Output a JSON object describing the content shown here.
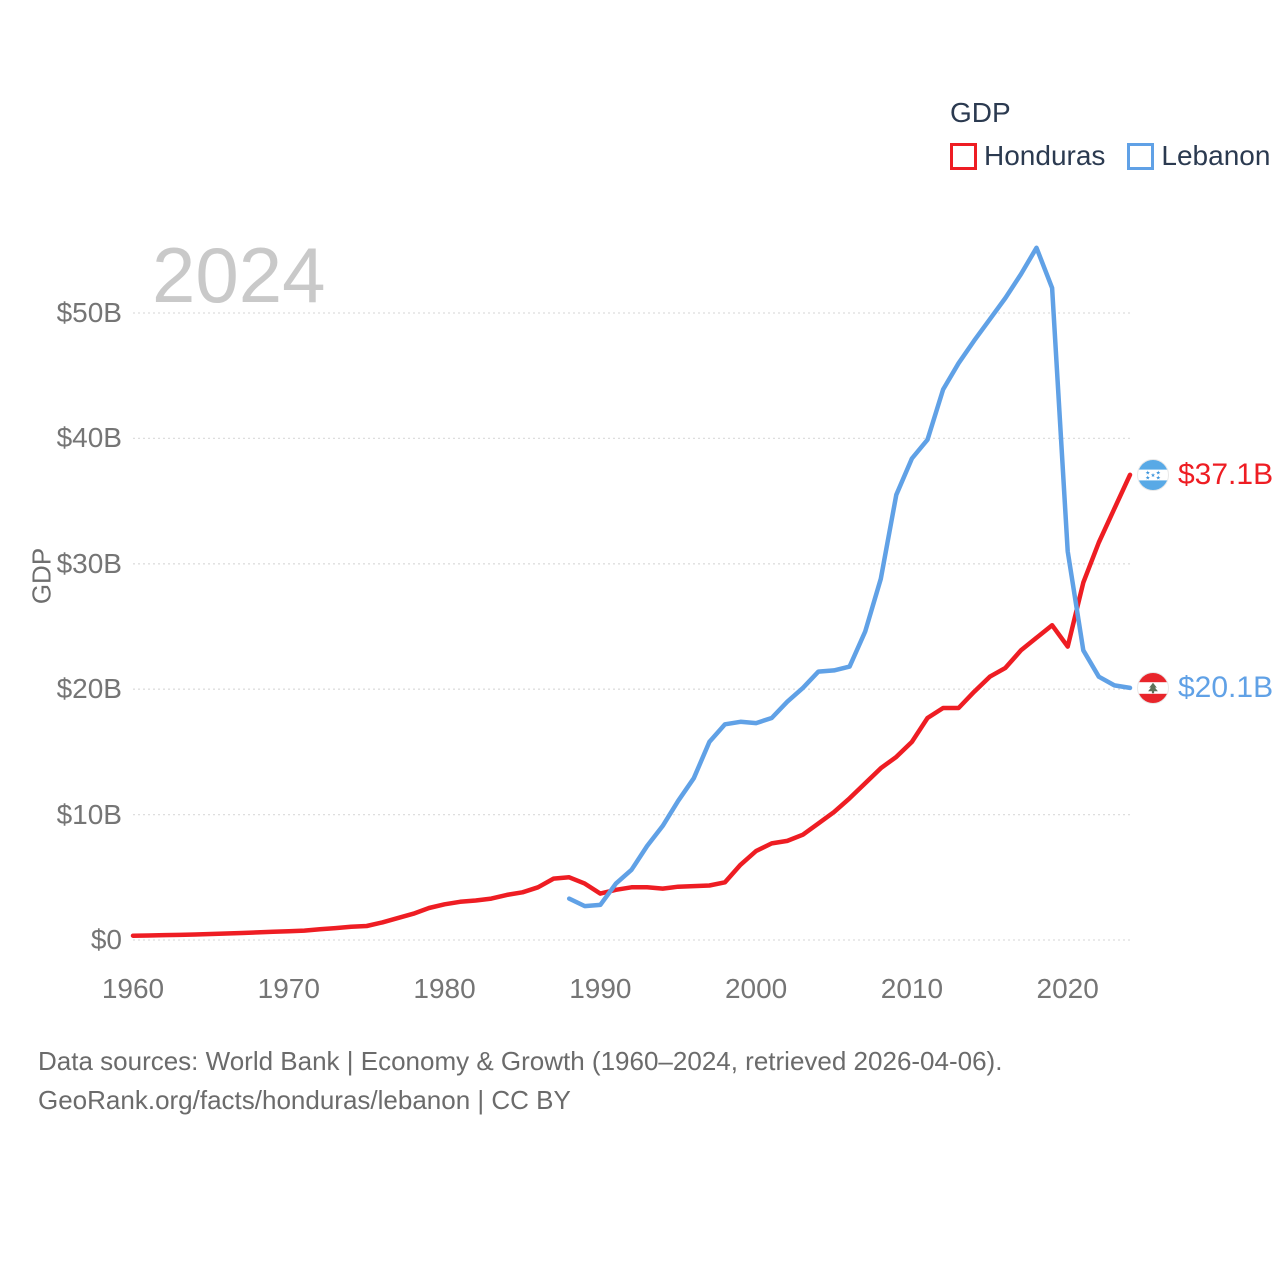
{
  "watermark": {
    "year": "2024",
    "color": "#c9c9c9"
  },
  "legend": {
    "title": "GDP",
    "items": [
      {
        "label": "Honduras",
        "color": "#ee1d23"
      },
      {
        "label": "Lebanon",
        "color": "#60a1e6"
      }
    ]
  },
  "end_labels": [
    {
      "series": "Honduras",
      "value": 37.1,
      "value_label": "$37.1B",
      "color": "#ee1d23",
      "icon": "honduras-flag"
    },
    {
      "series": "Lebanon",
      "value": 20.1,
      "value_label": "$20.1B",
      "color": "#60a1e6",
      "icon": "lebanon-flag"
    }
  ],
  "footer": {
    "line1": "Data sources: World Bank | Economy & Growth (1960–2024, retrieved 2026-04-06).",
    "line2": "GeoRank.org/facts/honduras/lebanon | CC BY"
  },
  "chart_data": {
    "type": "line",
    "title": "GDP",
    "xlabel": "",
    "ylabel": "GDP",
    "unit": "current US$, billions",
    "xlim": [
      1960,
      2024
    ],
    "ylim": [
      0,
      56
    ],
    "grid": "horizontal-dotted",
    "legend_position": "top-right",
    "x_ticks": [
      {
        "value": 1960,
        "label": "1960"
      },
      {
        "value": 1970,
        "label": "1970"
      },
      {
        "value": 1980,
        "label": "1980"
      },
      {
        "value": 1990,
        "label": "1990"
      },
      {
        "value": 2000,
        "label": "2000"
      },
      {
        "value": 2010,
        "label": "2010"
      },
      {
        "value": 2020,
        "label": "2020"
      }
    ],
    "y_ticks": [
      {
        "value": 0,
        "label": "$0"
      },
      {
        "value": 10,
        "label": "$10B"
      },
      {
        "value": 20,
        "label": "$20B"
      },
      {
        "value": 30,
        "label": "$30B"
      },
      {
        "value": 40,
        "label": "$40B"
      },
      {
        "value": 50,
        "label": "$50B"
      }
    ],
    "series": [
      {
        "name": "Honduras",
        "color": "#ee1d23",
        "start_year": 1960,
        "end_year": 2024,
        "values": [
          0.34,
          0.36,
          0.39,
          0.41,
          0.44,
          0.48,
          0.52,
          0.56,
          0.61,
          0.65,
          0.7,
          0.75,
          0.85,
          0.95,
          1.05,
          1.12,
          1.4,
          1.75,
          2.1,
          2.55,
          2.85,
          3.05,
          3.15,
          3.3,
          3.6,
          3.8,
          4.2,
          4.9,
          5.0,
          4.5,
          3.7,
          4.0,
          4.2,
          4.2,
          4.1,
          4.25,
          4.3,
          4.35,
          4.6,
          6.0,
          7.1,
          7.7,
          7.9,
          8.4,
          9.3,
          10.2,
          11.3,
          12.5,
          13.7,
          14.6,
          15.8,
          17.7,
          18.5,
          18.5,
          19.8,
          21.0,
          21.7,
          23.1,
          24.1,
          25.1,
          23.4,
          28.5,
          31.7,
          34.4,
          37.1
        ]
      },
      {
        "name": "Lebanon",
        "color": "#60a1e6",
        "start_year": 1988,
        "end_year": 2024,
        "values": [
          3.3,
          2.7,
          2.8,
          4.5,
          5.6,
          7.5,
          9.1,
          11.1,
          12.9,
          15.8,
          17.2,
          17.4,
          17.3,
          17.7,
          19.0,
          20.1,
          21.4,
          21.5,
          21.8,
          24.6,
          28.8,
          35.5,
          38.4,
          39.9,
          43.9,
          46.0,
          47.8,
          49.5,
          51.2,
          53.1,
          55.2,
          52.0,
          31.0,
          23.1,
          21.0,
          20.3,
          20.1
        ]
      }
    ]
  }
}
